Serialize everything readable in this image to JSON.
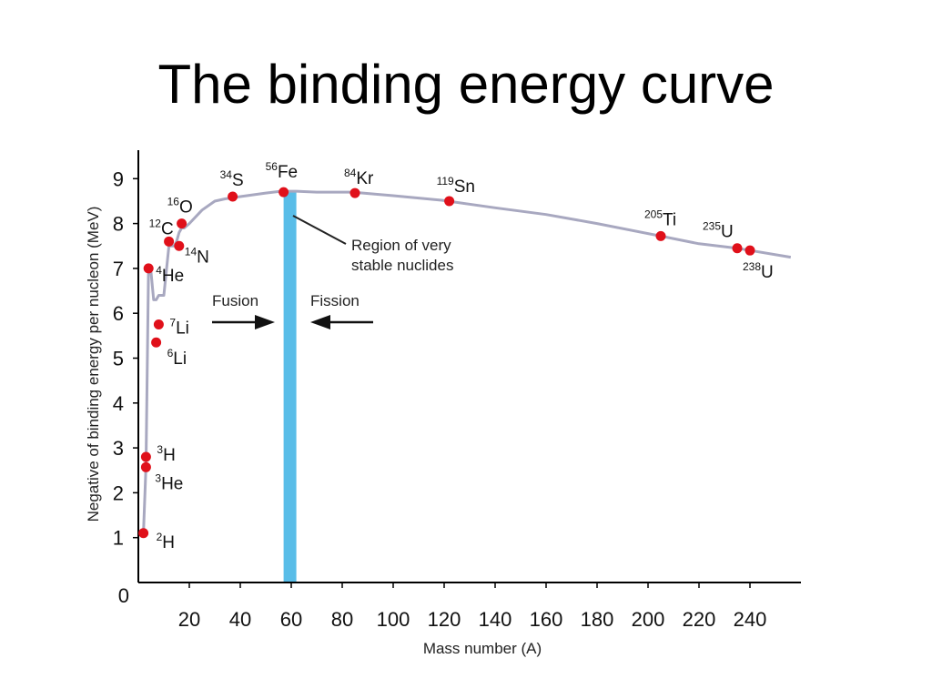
{
  "slide": {
    "title": "The binding energy curve"
  },
  "chart_data": {
    "type": "line",
    "title": "The binding energy curve",
    "xlabel": "Mass number (A)",
    "ylabel": "Negative of binding energy per nucleon (MeV)",
    "xlim": [
      0,
      260
    ],
    "ylim": [
      0,
      9.8
    ],
    "x_ticks": [
      "20",
      "40",
      "60",
      "80",
      "100",
      "120",
      "140",
      "160",
      "180",
      "200",
      "220",
      "240"
    ],
    "x_tick_values": [
      20,
      40,
      60,
      80,
      100,
      120,
      140,
      160,
      180,
      200,
      220,
      240
    ],
    "y_ticks": [
      "0",
      "1",
      "2",
      "3",
      "4",
      "5",
      "6",
      "7",
      "8",
      "9"
    ],
    "y_tick_values": [
      0,
      1,
      2,
      3,
      4,
      5,
      6,
      7,
      8,
      9
    ],
    "curve": {
      "x": [
        2,
        3,
        4,
        5,
        6,
        7,
        8,
        10,
        12,
        13,
        14,
        15,
        16,
        17,
        18,
        20,
        25,
        30,
        34,
        40,
        50,
        56,
        62,
        70,
        84,
        100,
        119,
        140,
        160,
        180,
        205,
        220,
        235,
        238,
        256
      ],
      "y": [
        1.1,
        2.6,
        7.0,
        6.9,
        6.3,
        6.3,
        6.4,
        6.4,
        7.5,
        7.5,
        7.5,
        7.6,
        7.8,
        7.9,
        7.9,
        8.0,
        8.3,
        8.5,
        8.55,
        8.6,
        8.68,
        8.72,
        8.72,
        8.7,
        8.7,
        8.62,
        8.52,
        8.35,
        8.2,
        8.0,
        7.72,
        7.55,
        7.45,
        7.42,
        7.25
      ]
    },
    "nuclides": [
      {
        "label": "2H",
        "mass": "2",
        "symbol": "H",
        "A": 2,
        "be": 1.1
      },
      {
        "label": "3H",
        "mass": "3",
        "symbol": "H",
        "A": 3,
        "be": 2.8
      },
      {
        "label": "3He",
        "mass": "3",
        "symbol": "He",
        "A": 3,
        "be": 2.57
      },
      {
        "label": "4He",
        "mass": "4",
        "symbol": "He",
        "A": 4,
        "be": 7.0
      },
      {
        "label": "6Li",
        "mass": "6",
        "symbol": "Li",
        "A": 7,
        "be": 5.35
      },
      {
        "label": "7Li",
        "mass": "7",
        "symbol": "Li",
        "A": 8,
        "be": 5.75
      },
      {
        "label": "12C",
        "mass": "12",
        "symbol": "C",
        "A": 12,
        "be": 7.6
      },
      {
        "label": "14N",
        "mass": "14",
        "symbol": "N",
        "A": 16,
        "be": 7.5
      },
      {
        "label": "16O",
        "mass": "16",
        "symbol": "O",
        "A": 17,
        "be": 8.0
      },
      {
        "label": "34S",
        "mass": "34",
        "symbol": "S",
        "A": 37,
        "be": 8.6
      },
      {
        "label": "56Fe",
        "mass": "56",
        "symbol": "Fe",
        "A": 57,
        "be": 8.7
      },
      {
        "label": "84Kr",
        "mass": "84",
        "symbol": "Kr",
        "A": 85,
        "be": 8.68
      },
      {
        "label": "119Sn",
        "mass": "119",
        "symbol": "Sn",
        "A": 122,
        "be": 8.5
      },
      {
        "label": "205Ti",
        "mass": "205",
        "symbol": "Ti",
        "A": 205,
        "be": 7.72
      },
      {
        "label": "235U",
        "mass": "235",
        "symbol": "U",
        "A": 235,
        "be": 7.45
      },
      {
        "label": "238U",
        "mass": "238",
        "symbol": "U",
        "A": 240,
        "be": 7.4
      }
    ],
    "stable_region": {
      "x_start": 57,
      "x_end": 62
    },
    "annotations": {
      "region_line1": "Region of very",
      "region_line2": "stable nuclides",
      "fusion": "Fusion",
      "fission": "Fission"
    },
    "colors": {
      "curve": "#a8a8c0",
      "point": "#e0101a",
      "band": "#59bde8",
      "axis": "#000000"
    }
  }
}
